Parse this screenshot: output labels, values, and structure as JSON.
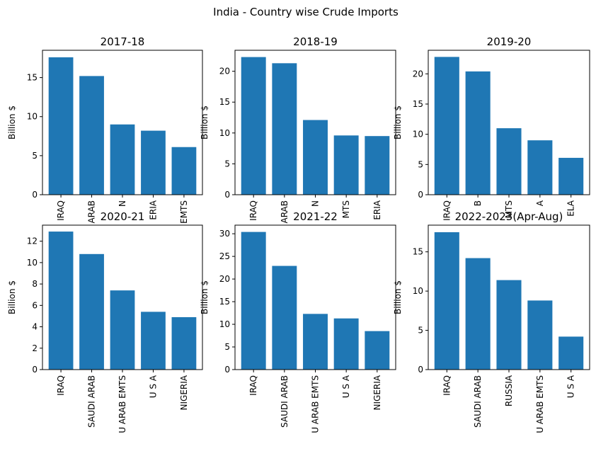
{
  "suptitle": "India - Country wise Crude Imports",
  "colors": {
    "bar": "#1f77b4"
  },
  "chart_data": [
    {
      "type": "bar",
      "title": "2017-18",
      "ylabel": "Billion $",
      "categories": [
        "IRAQ",
        "SAUDI ARAB",
        "U ARAB EMTS",
        "NIGERIA",
        "U ARAB EMTS"
      ],
      "category_labels_visible": [
        "IRAQ",
        "ARAB",
        "N",
        "ERIA",
        "EMTS"
      ],
      "values": [
        17.6,
        15.2,
        9.0,
        8.2,
        6.1
      ],
      "ylim": [
        0,
        18.5
      ],
      "yticks": [
        0,
        5,
        10,
        15
      ]
    },
    {
      "type": "bar",
      "title": "2018-19",
      "ylabel": "Billion $",
      "categories": [
        "IRAQ",
        "SAUDI ARAB",
        "U ARAB EMTS",
        "U ARAB EMTS",
        "NIGERIA"
      ],
      "category_labels_visible": [
        "IRAQ",
        "ARAB",
        "N",
        "MTS",
        "ERIA"
      ],
      "values": [
        22.3,
        21.3,
        12.1,
        9.6,
        9.5
      ],
      "ylim": [
        0,
        23.4
      ],
      "yticks": [
        0,
        5,
        10,
        15,
        20
      ]
    },
    {
      "type": "bar",
      "title": "2019-20",
      "ylabel": "Billion $",
      "categories": [
        "IRAQ",
        "SAUDI ARAB",
        "U ARAB EMTS",
        "NIGERIA",
        "VENEZUELA"
      ],
      "category_labels_visible": [
        "IRAQ",
        "B",
        "MTS",
        "A",
        "ELA"
      ],
      "values": [
        22.8,
        20.4,
        11.0,
        9.0,
        6.1
      ],
      "ylim": [
        0,
        23.9
      ],
      "yticks": [
        0,
        5,
        10,
        15,
        20
      ]
    },
    {
      "type": "bar",
      "title": "2020-21",
      "ylabel": "Billion $",
      "categories": [
        "IRAQ",
        "SAUDI ARAB",
        "U ARAB EMTS",
        "U S A",
        "NIGERIA"
      ],
      "values": [
        12.9,
        10.8,
        7.4,
        5.4,
        4.9
      ],
      "ylim": [
        0,
        13.5
      ],
      "yticks": [
        0,
        2,
        4,
        6,
        8,
        10,
        12
      ]
    },
    {
      "type": "bar",
      "title": "2021-22",
      "ylabel": "Billion $",
      "categories": [
        "IRAQ",
        "SAUDI ARAB",
        "U ARAB EMTS",
        "U S A",
        "NIGERIA"
      ],
      "values": [
        30.4,
        22.9,
        12.3,
        11.3,
        8.5
      ],
      "ylim": [
        0,
        31.9
      ],
      "yticks": [
        0,
        5,
        10,
        15,
        20,
        25,
        30
      ]
    },
    {
      "type": "bar",
      "title": "2022-2023(Apr-Aug)",
      "ylabel": "Billion $",
      "categories": [
        "IRAQ",
        "SAUDI ARAB",
        "RUSSIA",
        "U ARAB EMTS",
        "U S A"
      ],
      "values": [
        17.5,
        14.2,
        11.4,
        8.8,
        4.2
      ],
      "ylim": [
        0,
        18.4
      ],
      "yticks": [
        0,
        5,
        10,
        15
      ]
    }
  ]
}
